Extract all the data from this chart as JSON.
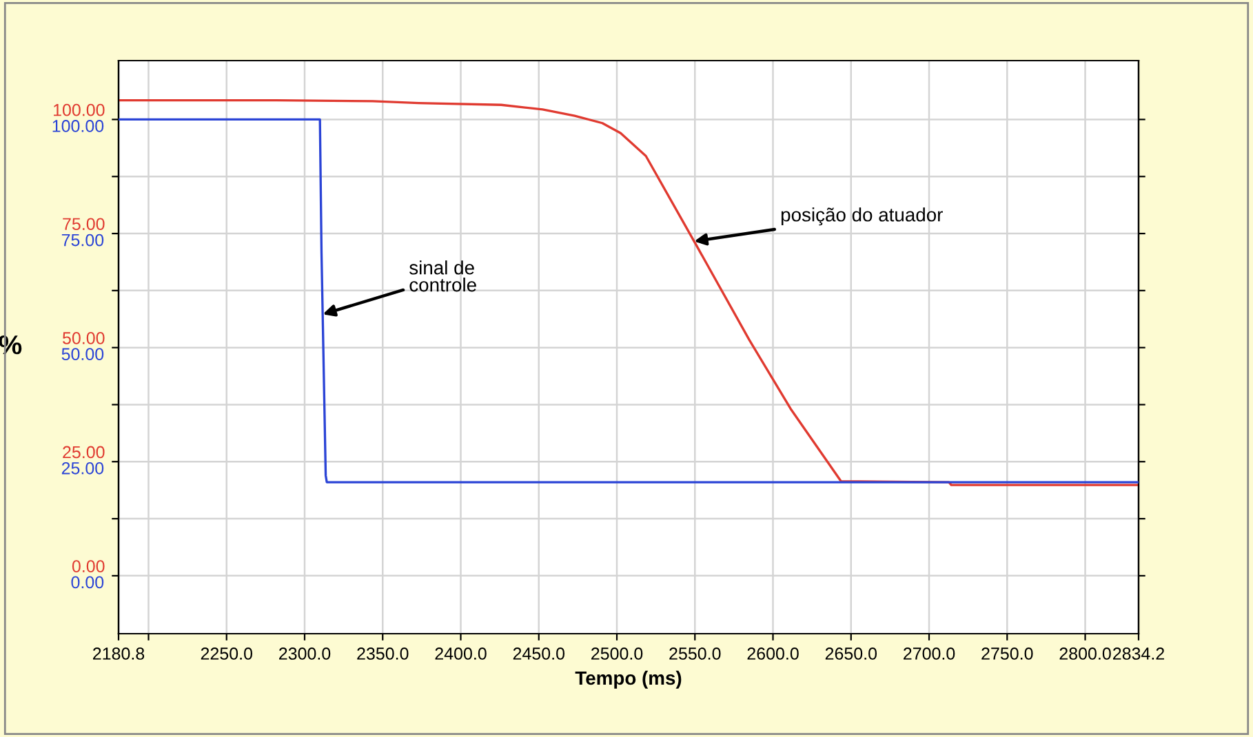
{
  "chart_data": {
    "type": "line",
    "xlabel": "Tempo (ms)",
    "ylabel": "%",
    "xlim": [
      2180.8,
      2834.2
    ],
    "xticks": [
      2180.8,
      {
        "value": 2200,
        "label": null
      },
      {
        "value": 2250,
        "label": "2250.0"
      },
      {
        "value": 2300,
        "label": "2300.0"
      },
      {
        "value": 2350,
        "label": "2350.0"
      },
      {
        "value": 2400,
        "label": "2400.0"
      },
      {
        "value": 2450,
        "label": "2450.0"
      },
      {
        "value": 2500,
        "label": "2500.0"
      },
      {
        "value": 2550,
        "label": "2550.0"
      },
      {
        "value": 2600,
        "label": "2600.0"
      },
      {
        "value": 2650,
        "label": "2650.0"
      },
      {
        "value": 2700,
        "label": "2700.0"
      },
      {
        "value": 2750,
        "label": "2750.0"
      },
      {
        "value": 2800,
        "label": "2800.0"
      },
      2834.2
    ],
    "ylim": [
      -12.7,
      112.9
    ],
    "y2lim": [
      -12.7,
      112.9
    ],
    "yticks": [
      {
        "value": 0,
        "label": "0.00"
      },
      {
        "value": 12.5,
        "label": null
      },
      {
        "value": 25,
        "label": "25.00"
      },
      {
        "value": 37.5,
        "label": null
      },
      {
        "value": 50,
        "label": "50.00"
      },
      {
        "value": 62.5,
        "label": null
      },
      {
        "value": 75,
        "label": "75.00"
      },
      {
        "value": 87.5,
        "label": null
      },
      {
        "value": 100,
        "label": "100.00"
      }
    ],
    "y2ticks": [
      {
        "value": 0,
        "label": "0.00"
      },
      {
        "value": 25,
        "label": "25.00"
      },
      {
        "value": 50,
        "label": "50.00"
      },
      {
        "value": 75,
        "label": "75.00"
      },
      {
        "value": 100,
        "label": "100.00"
      }
    ],
    "grid": true,
    "series": [
      {
        "color": "#e03a30",
        "axis": "y",
        "x": [
          2180.8,
          2282,
          2343.6,
          2373,
          2425.9,
          2452.4,
          2473,
          2490.7,
          2502.4,
          2518.6,
          2549.5,
          2584.8,
          2611.3,
          2643.6,
          2712.7,
          2714.2,
          2834.2
        ],
        "values": [
          104.2,
          104.2,
          104.0,
          103.6,
          103.2,
          102.2,
          100.8,
          99.2,
          97.0,
          92.0,
          73.3,
          51.7,
          36.6,
          20.7,
          20.5,
          19.9,
          19.9
        ]
      },
      {
        "color": "#2b44d6",
        "axis": "y2",
        "x": [
          2180.8,
          2309.8,
          2310.8,
          2313.5,
          2314.2,
          2834.2
        ],
        "values": [
          100,
          100,
          71,
          22,
          20.5,
          20.5
        ]
      }
    ],
    "annotations": [
      {
        "text": "sinal de\ncontrole",
        "x": 2311.6,
        "y": 57.3
      },
      {
        "text": "posição do atuador",
        "x": 2549.5,
        "y": 73.3
      }
    ]
  }
}
